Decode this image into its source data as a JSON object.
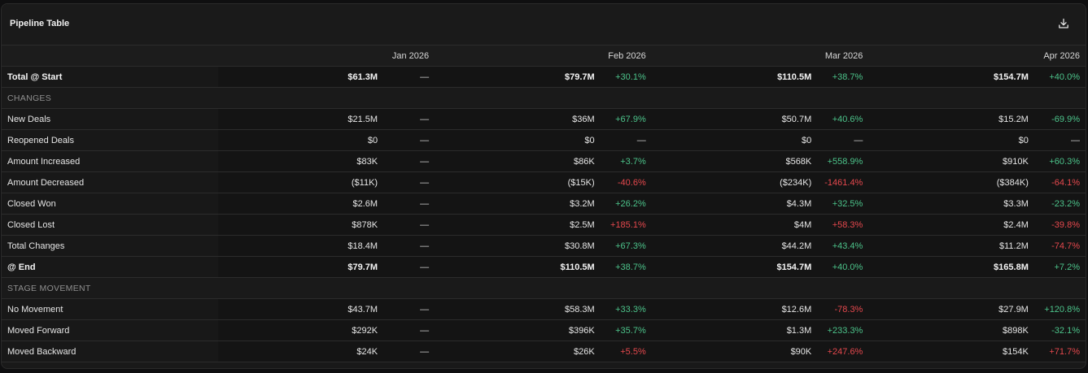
{
  "panel": {
    "title": "Pipeline Table",
    "download_icon": "download-icon"
  },
  "columns": [
    "Jan 2026",
    "Feb 2026",
    "Mar 2026",
    "Apr 2026"
  ],
  "rows": [
    {
      "type": "data",
      "bold": true,
      "label": "Total @ Start",
      "cells": [
        {
          "v": "$61.3M",
          "p": "—",
          "s": "neu"
        },
        {
          "v": "$79.7M",
          "p": "+30.1%",
          "s": "pos"
        },
        {
          "v": "$110.5M",
          "p": "+38.7%",
          "s": "pos"
        },
        {
          "v": "$154.7M",
          "p": "+40.0%",
          "s": "pos"
        }
      ]
    },
    {
      "type": "section",
      "label": "CHANGES"
    },
    {
      "type": "data",
      "bold": false,
      "label": "New Deals",
      "cells": [
        {
          "v": "$21.5M",
          "p": "—",
          "s": "neu"
        },
        {
          "v": "$36M",
          "p": "+67.9%",
          "s": "pos"
        },
        {
          "v": "$50.7M",
          "p": "+40.6%",
          "s": "pos"
        },
        {
          "v": "$15.2M",
          "p": "-69.9%",
          "s": "pos"
        }
      ]
    },
    {
      "type": "data",
      "bold": false,
      "label": "Reopened Deals",
      "cells": [
        {
          "v": "$0",
          "p": "—",
          "s": "neu"
        },
        {
          "v": "$0",
          "p": "—",
          "s": "neu"
        },
        {
          "v": "$0",
          "p": "—",
          "s": "neu"
        },
        {
          "v": "$0",
          "p": "—",
          "s": "neu"
        }
      ]
    },
    {
      "type": "data",
      "bold": false,
      "label": "Amount Increased",
      "cells": [
        {
          "v": "$83K",
          "p": "—",
          "s": "neu"
        },
        {
          "v": "$86K",
          "p": "+3.7%",
          "s": "pos"
        },
        {
          "v": "$568K",
          "p": "+558.9%",
          "s": "pos"
        },
        {
          "v": "$910K",
          "p": "+60.3%",
          "s": "pos"
        }
      ]
    },
    {
      "type": "data",
      "bold": false,
      "label": "Amount Decreased",
      "cells": [
        {
          "v": "($11K)",
          "p": "—",
          "s": "neu"
        },
        {
          "v": "($15K)",
          "p": "-40.6%",
          "s": "neg"
        },
        {
          "v": "($234K)",
          "p": "-1461.4%",
          "s": "neg"
        },
        {
          "v": "($384K)",
          "p": "-64.1%",
          "s": "neg"
        }
      ]
    },
    {
      "type": "data",
      "bold": false,
      "label": "Closed Won",
      "cells": [
        {
          "v": "$2.6M",
          "p": "—",
          "s": "neu"
        },
        {
          "v": "$3.2M",
          "p": "+26.2%",
          "s": "pos"
        },
        {
          "v": "$4.3M",
          "p": "+32.5%",
          "s": "pos"
        },
        {
          "v": "$3.3M",
          "p": "-23.2%",
          "s": "pos"
        }
      ]
    },
    {
      "type": "data",
      "bold": false,
      "label": "Closed Lost",
      "cells": [
        {
          "v": "$878K",
          "p": "—",
          "s": "neu"
        },
        {
          "v": "$2.5M",
          "p": "+185.1%",
          "s": "neg"
        },
        {
          "v": "$4M",
          "p": "+58.3%",
          "s": "neg"
        },
        {
          "v": "$2.4M",
          "p": "-39.8%",
          "s": "neg"
        }
      ]
    },
    {
      "type": "data",
      "bold": false,
      "label": "Total Changes",
      "cells": [
        {
          "v": "$18.4M",
          "p": "—",
          "s": "neu"
        },
        {
          "v": "$30.8M",
          "p": "+67.3%",
          "s": "pos"
        },
        {
          "v": "$44.2M",
          "p": "+43.4%",
          "s": "pos"
        },
        {
          "v": "$11.2M",
          "p": "-74.7%",
          "s": "neg"
        }
      ]
    },
    {
      "type": "data",
      "bold": true,
      "label": "@ End",
      "cells": [
        {
          "v": "$79.7M",
          "p": "—",
          "s": "neu"
        },
        {
          "v": "$110.5M",
          "p": "+38.7%",
          "s": "pos"
        },
        {
          "v": "$154.7M",
          "p": "+40.0%",
          "s": "pos"
        },
        {
          "v": "$165.8M",
          "p": "+7.2%",
          "s": "pos"
        }
      ]
    },
    {
      "type": "section",
      "label": "STAGE MOVEMENT"
    },
    {
      "type": "data",
      "bold": false,
      "label": "No Movement",
      "cells": [
        {
          "v": "$43.7M",
          "p": "—",
          "s": "neu"
        },
        {
          "v": "$58.3M",
          "p": "+33.3%",
          "s": "pos"
        },
        {
          "v": "$12.6M",
          "p": "-78.3%",
          "s": "neg"
        },
        {
          "v": "$27.9M",
          "p": "+120.8%",
          "s": "pos"
        }
      ]
    },
    {
      "type": "data",
      "bold": false,
      "label": "Moved Forward",
      "cells": [
        {
          "v": "$292K",
          "p": "—",
          "s": "neu"
        },
        {
          "v": "$396K",
          "p": "+35.7%",
          "s": "pos"
        },
        {
          "v": "$1.3M",
          "p": "+233.3%",
          "s": "pos"
        },
        {
          "v": "$898K",
          "p": "-32.1%",
          "s": "pos"
        }
      ]
    },
    {
      "type": "data",
      "bold": false,
      "label": "Moved Backward",
      "cells": [
        {
          "v": "$24K",
          "p": "—",
          "s": "neu"
        },
        {
          "v": "$26K",
          "p": "+5.5%",
          "s": "neg"
        },
        {
          "v": "$90K",
          "p": "+247.6%",
          "s": "neg"
        },
        {
          "v": "$154K",
          "p": "+71.7%",
          "s": "neg"
        }
      ]
    }
  ],
  "colors": {
    "positive": "#4cc38a",
    "negative": "#e5484d",
    "neutral": "#d0d0d0"
  }
}
